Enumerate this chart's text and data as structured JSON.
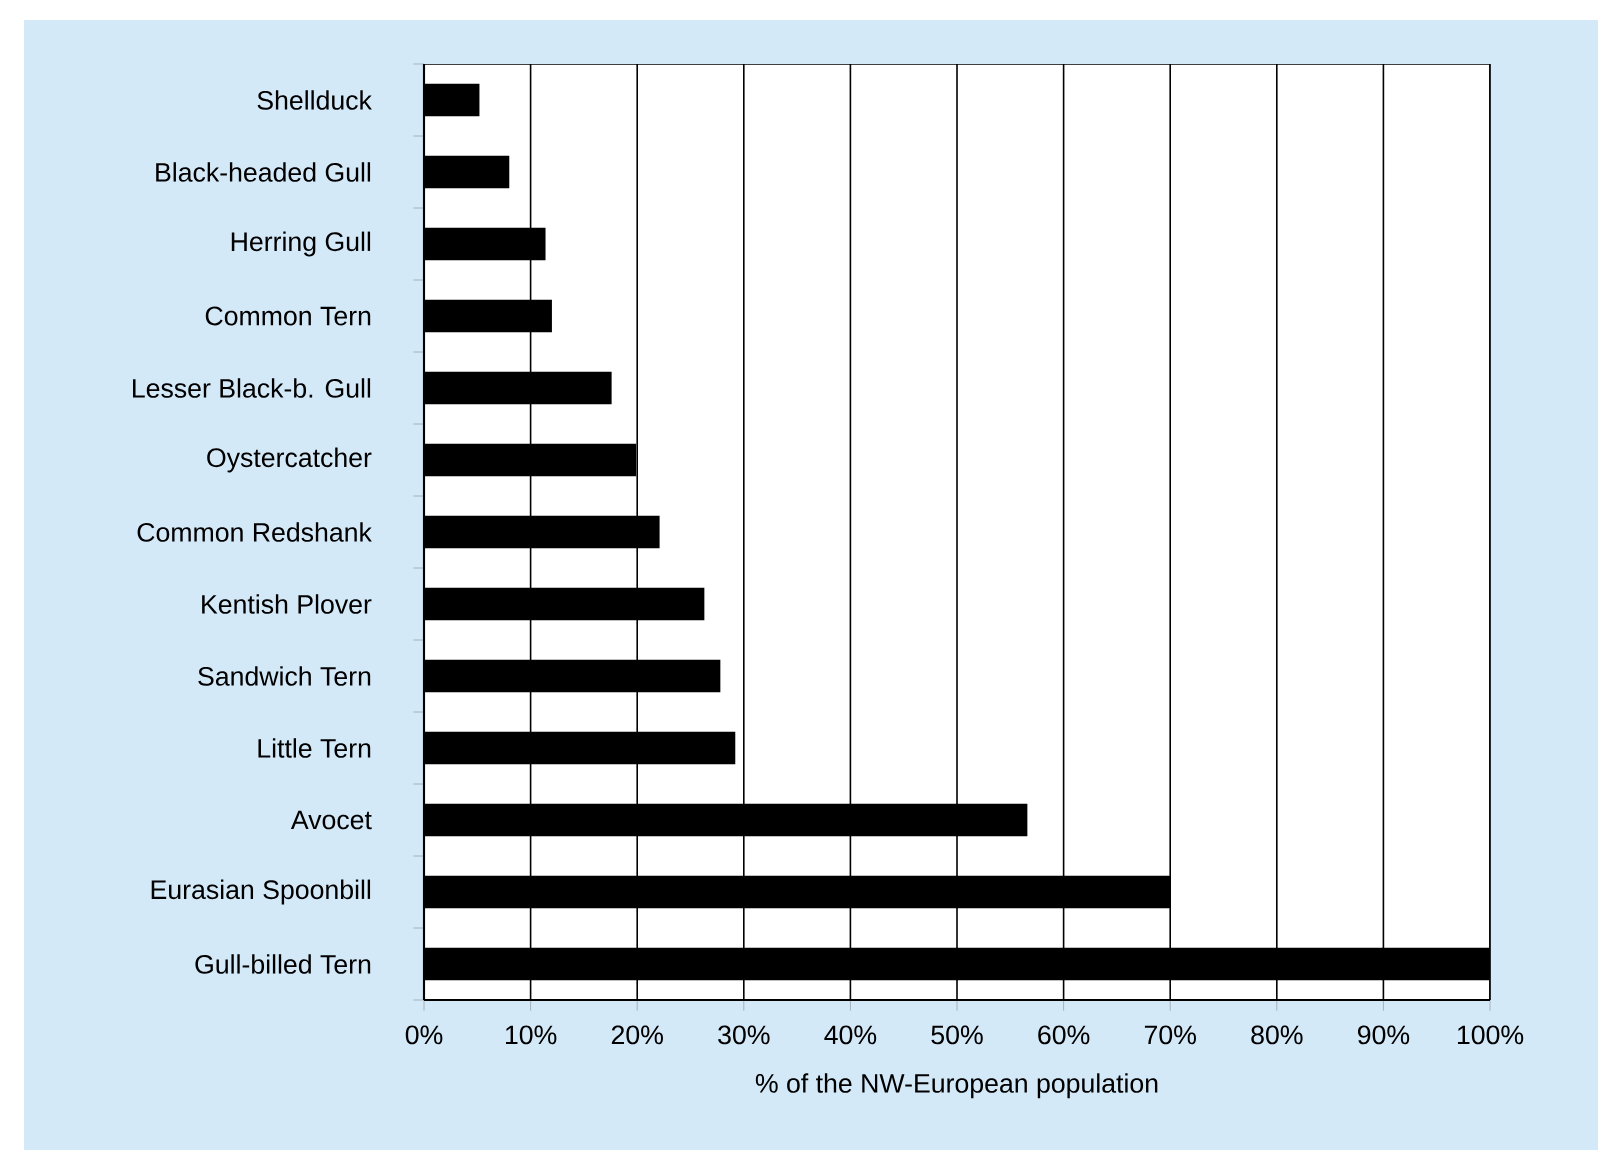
{
  "chart_data": {
    "type": "bar",
    "orientation": "horizontal",
    "xlabel": "% of the NW-European population",
    "categories": [
      "Shellduck",
      "Black-headed Gull",
      "Herring Gull",
      "Common Tern",
      "Lesser Black-b. Gull",
      "Oystercatcher",
      "Common Redshank",
      "Kentish Plover",
      "Sandwich Tern",
      "Little Tern",
      "Avocet",
      "Eurasian Spoonbill",
      "Gull-billed Tern"
    ],
    "values": [
      5.2,
      8.0,
      11.4,
      12.0,
      17.6,
      19.9,
      22.1,
      26.3,
      27.8,
      29.2,
      56.6,
      70,
      100
    ],
    "color": "#000000",
    "xlim": [
      0,
      100
    ],
    "xticks": [
      {
        "value": 0,
        "label": "0%"
      },
      {
        "value": 10,
        "label": "10%"
      },
      {
        "value": 20,
        "label": "20%"
      },
      {
        "value": 30,
        "label": "30%"
      },
      {
        "value": 40,
        "label": "40%"
      },
      {
        "value": 50,
        "label": "50%"
      },
      {
        "value": 60,
        "label": "60%"
      },
      {
        "value": 70,
        "label": "70%"
      },
      {
        "value": 80,
        "label": "80%"
      },
      {
        "value": 90,
        "label": "90%"
      },
      {
        "value": 100,
        "label": "100%"
      }
    ],
    "grid": "x"
  }
}
